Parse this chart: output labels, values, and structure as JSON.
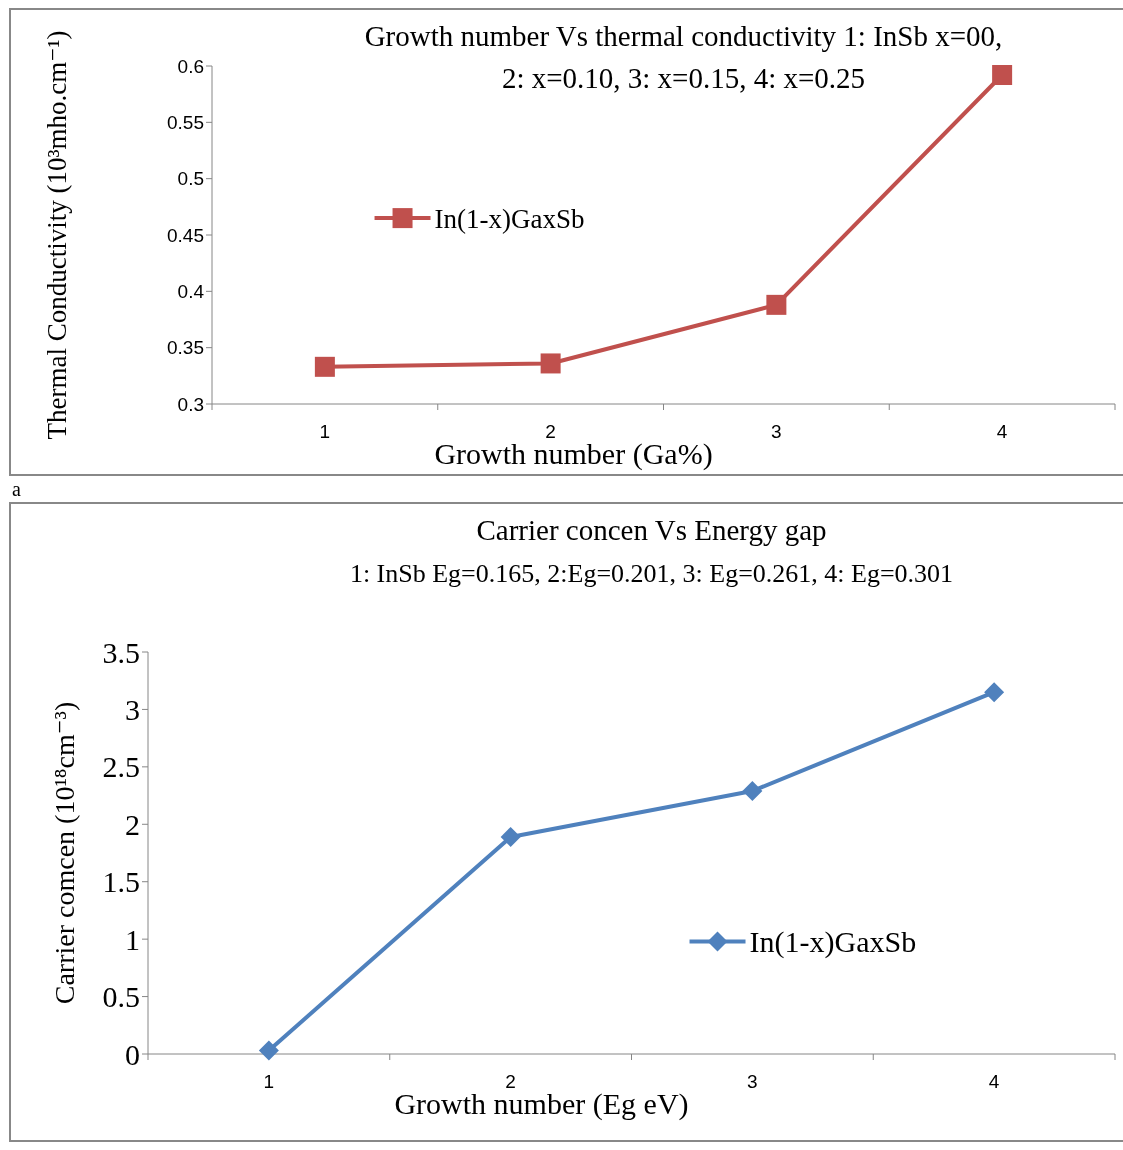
{
  "chart_data": [
    {
      "type": "line",
      "title": "Growth number Vs thermal conductivity 1: InSb x=00, 2: x=0.10, 3: x=0.15, 4: x=0.25",
      "xlabel": "Growth number (Ga%)",
      "ylabel": "Thermal Conductivity (10³mho.cm⁻¹)",
      "categories": [
        "1",
        "2",
        "3",
        "4"
      ],
      "series": [
        {
          "name": "In(1-x)GaxSb",
          "color": "#c0504d",
          "values": [
            0.333,
            0.336,
            0.388,
            0.592
          ]
        }
      ],
      "ylim": [
        0.3,
        0.6
      ],
      "yticks": [
        0.3,
        0.35,
        0.4,
        0.45,
        0.5,
        0.55,
        0.6
      ],
      "marker": "square",
      "legend": "left",
      "grid": false,
      "annotations": [
        "a"
      ]
    },
    {
      "type": "line",
      "title": "Carrier concen Vs Energy gap",
      "subtitle": "1: InSb Eg=0.165, 2:Eg=0.201, 3: Eg=0.261, 4: Eg=0.301",
      "xlabel": "Growth number (Eg eV)",
      "ylabel": "Carrier comcen (10¹⁸cm⁻³)",
      "categories": [
        "1",
        "2",
        "3",
        "4"
      ],
      "series": [
        {
          "name": "In(1-x)GaxSb",
          "color": "#4f81bd",
          "values": [
            0.03,
            1.89,
            2.29,
            3.15
          ]
        }
      ],
      "ylim": [
        0,
        3.5
      ],
      "yticks": [
        0,
        0.5,
        1,
        1.5,
        2,
        2.5,
        3,
        3.5
      ],
      "marker": "diamond",
      "legend": "bottom right",
      "grid": false
    }
  ]
}
